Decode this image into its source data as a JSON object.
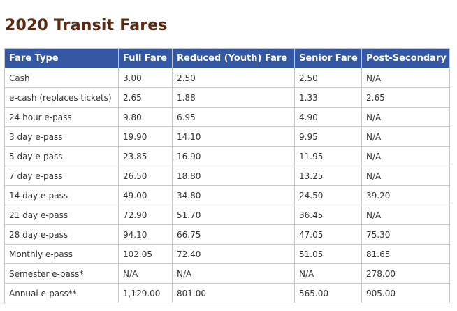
{
  "title": "2020 Transit Fares",
  "table": {
    "headers": [
      "Fare Type",
      "Full Fare",
      "Reduced (Youth) Fare",
      "Senior Fare",
      "Post-Secondary"
    ],
    "rows": [
      [
        "Cash",
        "3.00",
        "2.50",
        "2.50",
        "N/A"
      ],
      [
        "e-cash (replaces tickets)",
        "2.65",
        "1.88",
        "1.33",
        "2.65"
      ],
      [
        "24 hour e-pass",
        "9.80",
        "6.95",
        "4.90",
        "N/A"
      ],
      [
        "3 day e-pass",
        "19.90",
        "14.10",
        "9.95",
        "N/A"
      ],
      [
        "5 day e-pass",
        "23.85",
        "16.90",
        "11.95",
        "N/A"
      ],
      [
        "7 day e-pass",
        "26.50",
        "18.80",
        "13.25",
        "N/A"
      ],
      [
        "14 day e-pass",
        "49.00",
        "34.80",
        "24.50",
        "39.20"
      ],
      [
        "21 day e-pass",
        "72.90",
        "51.70",
        "36.45",
        "N/A"
      ],
      [
        "28 day e-pass",
        "94.10",
        "66.75",
        "47.05",
        "75.30"
      ],
      [
        "Monthly e-pass",
        "102.05",
        "72.40",
        "51.05",
        "81.65"
      ],
      [
        "Semester e-pass*",
        "N/A",
        "N/A",
        "N/A",
        "278.00"
      ],
      [
        "Annual e-pass**",
        "1,129.00",
        "801.00",
        "565.00",
        "905.00"
      ]
    ]
  },
  "colors": {
    "title": "#5a2a13",
    "header_bg": "#3457a4",
    "header_text": "#ffffff",
    "border": "#c7c7c7",
    "cell_text": "#333333"
  }
}
